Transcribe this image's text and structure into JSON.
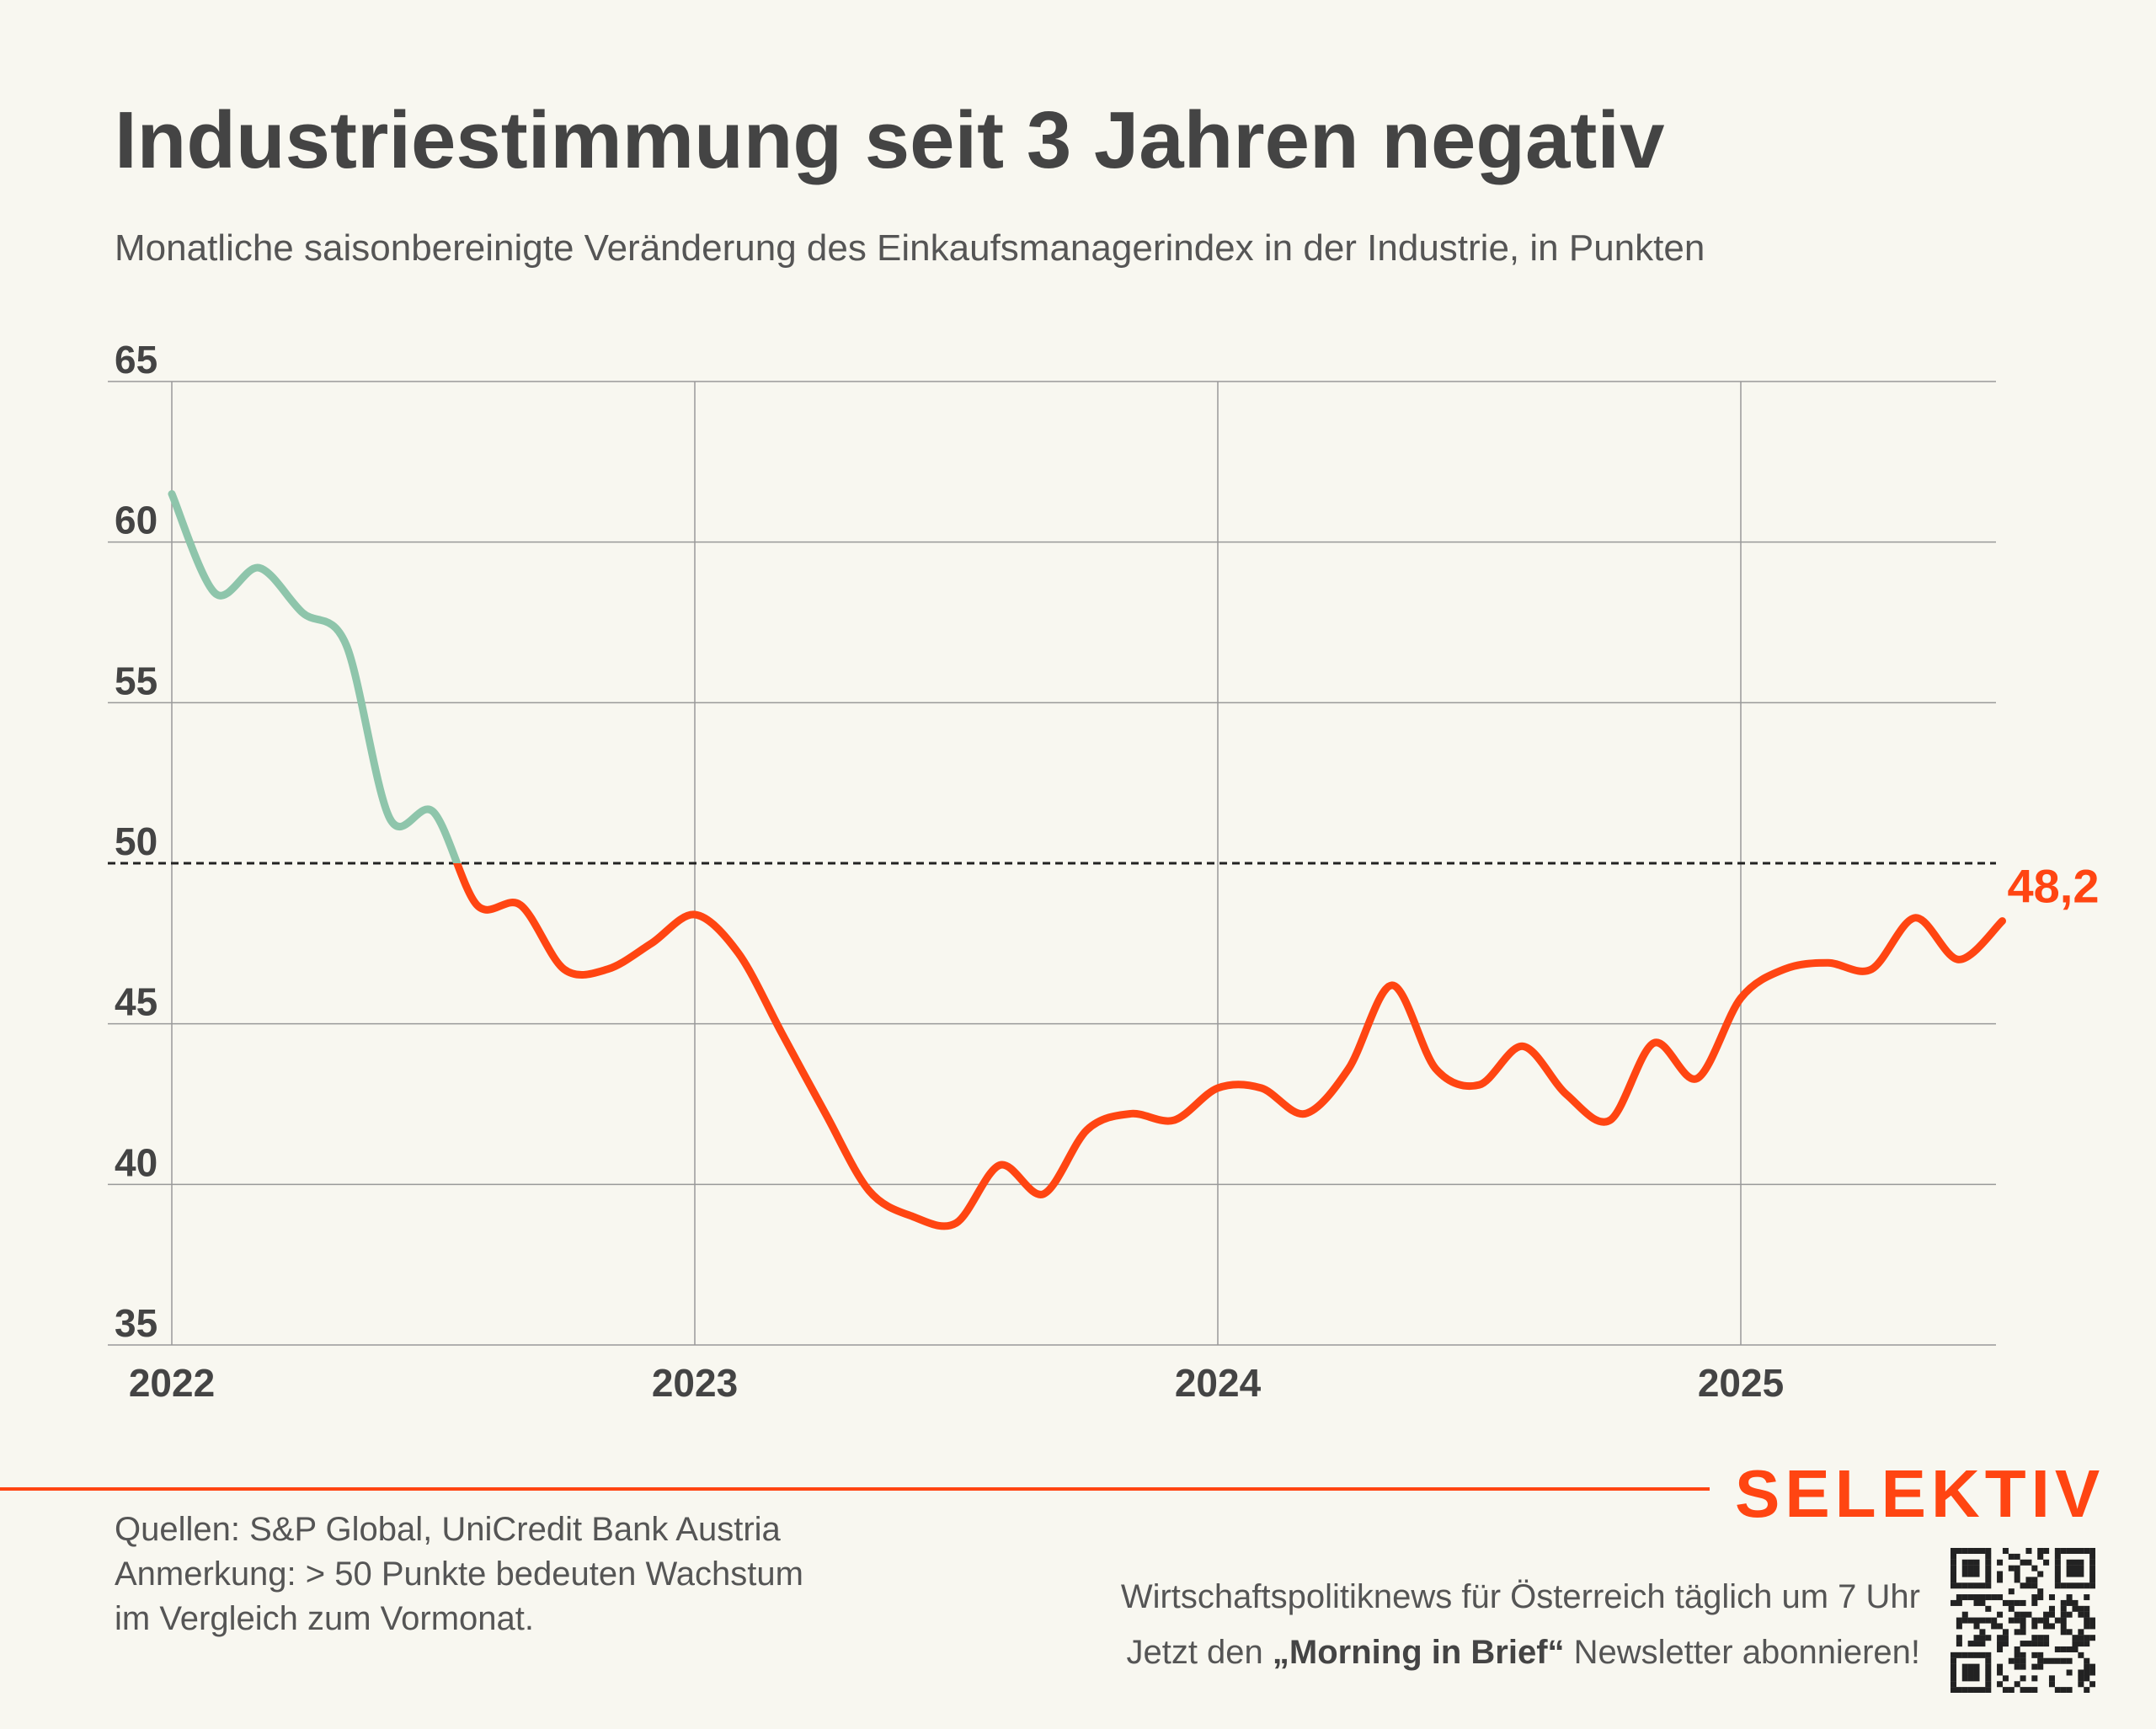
{
  "title": "Industriestimmung seit 3 Jahren negativ",
  "subtitle": "Monatliche saisonbereinigte Veränderung des Einkaufsmanagerindex in der Industrie, in Punkten",
  "colors": {
    "background": "#f8f7f0",
    "above_threshold": "#8ec5ab",
    "below_threshold": "#ff4512",
    "text": "#444444",
    "grid": "#999999"
  },
  "chart_data": {
    "type": "line",
    "x_start": "2022-01",
    "x_labels": [
      "2022",
      "2023",
      "2024",
      "2025"
    ],
    "y_ticks": [
      35,
      40,
      45,
      50,
      55,
      60,
      65
    ],
    "ylim": [
      35,
      65
    ],
    "threshold": 50,
    "grid": true,
    "series": [
      {
        "values": [
          61.5,
          58.4,
          59.2,
          57.8,
          56.8,
          51.4,
          51.6,
          48.7,
          48.7,
          46.7,
          46.7,
          47.5,
          48.4,
          47.2,
          44.7,
          42.2,
          39.8,
          39.0,
          38.8,
          40.6,
          39.7,
          41.7,
          42.2,
          42.0,
          43.0,
          43.0,
          42.2,
          43.6,
          46.2,
          43.6,
          43.1,
          44.3,
          42.8,
          42.0,
          44.4,
          43.3,
          45.8,
          46.7,
          46.9,
          46.7,
          48.3,
          47.0,
          48.2
        ]
      }
    ],
    "end_label": "48,2"
  },
  "footer": {
    "sources": "Quellen: S&P Global, UniCredit Bank Austria",
    "note_line1": "Anmerkung: > 50 Punkte bedeuten Wachstum",
    "note_line2": "im Vergleich zum Vormonat.",
    "brand": "SELEKTIV",
    "promo_line1": "Wirtschaftspolitiknews für Österreich täglich um 7 Uhr",
    "promo_prefix": "Jetzt den ",
    "promo_bold": "„Morning in Brief“",
    "promo_suffix": " Newsletter abonnieren!"
  }
}
